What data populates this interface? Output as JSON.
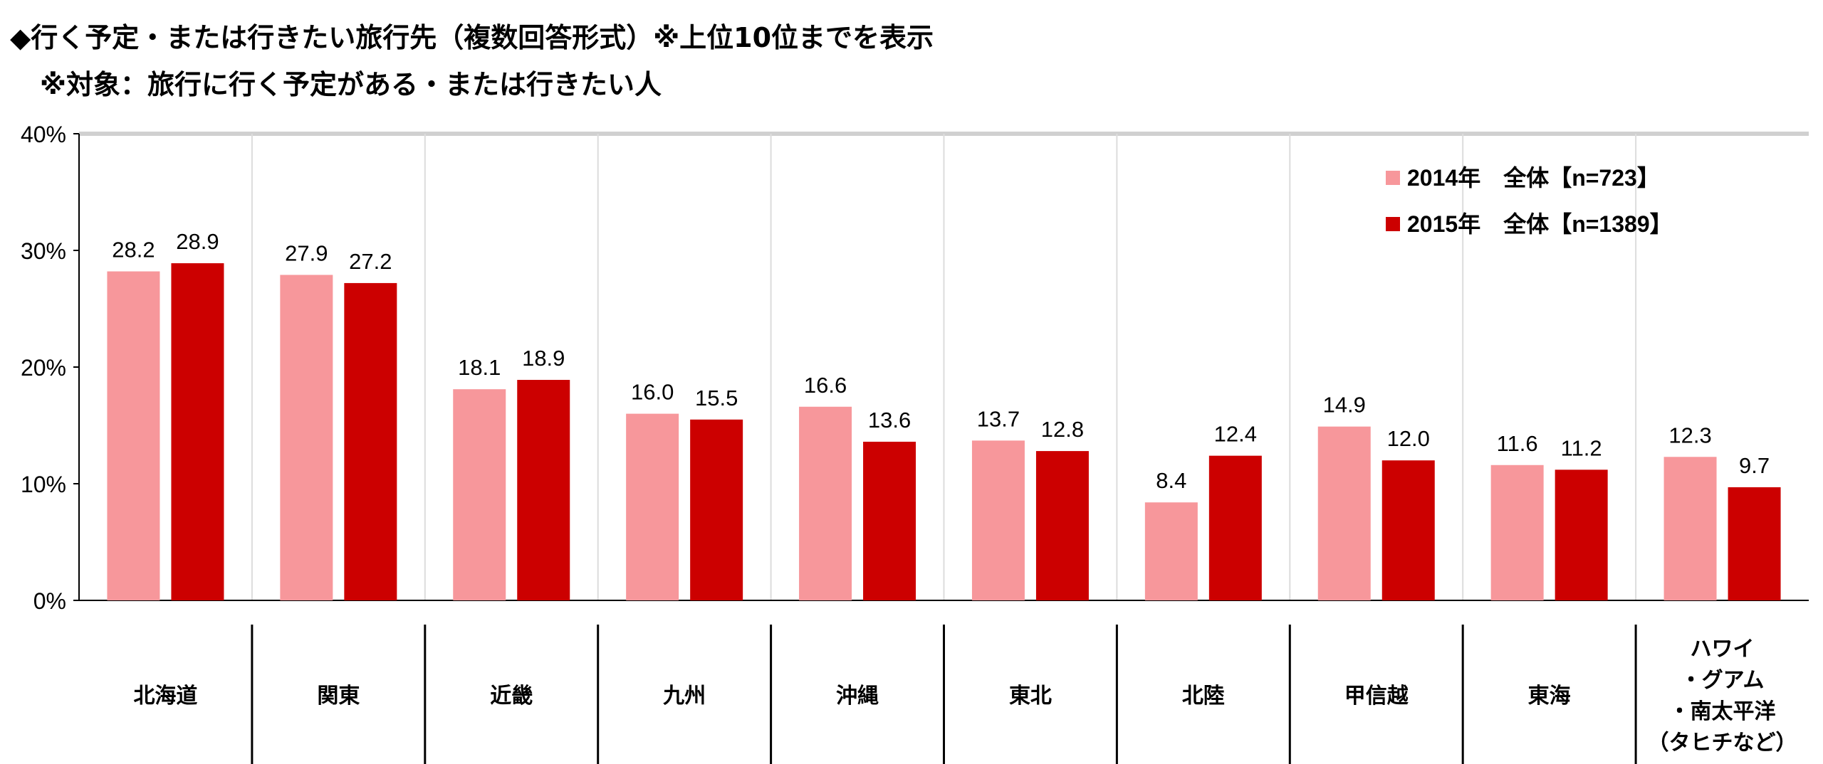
{
  "title": "◆行く予定・または行きたい旅行先（複数回答形式）※上位10位までを表示",
  "subtitle": "※対象：旅行に行く予定がある・または行きたい人",
  "colors": {
    "series_2014": "#F7979B",
    "series_2015": "#CC0000"
  },
  "chart_data": {
    "type": "bar",
    "title": "◆行く予定・または行きたい旅行先（複数回答形式）※上位10位までを表示",
    "xlabel": "",
    "ylabel": "",
    "ylim": [
      0,
      40
    ],
    "yticks": [
      "0%",
      "10%",
      "20%",
      "30%",
      "40%"
    ],
    "legend_position": "top-right",
    "categories": [
      [
        "北海道"
      ],
      [
        "関東"
      ],
      [
        "近畿"
      ],
      [
        "九州"
      ],
      [
        "沖縄"
      ],
      [
        "東北"
      ],
      [
        "北陸"
      ],
      [
        "甲信越"
      ],
      [
        "東海"
      ],
      [
        "ハワイ",
        "・グアム",
        "・南太平洋",
        "（タヒチなど）"
      ]
    ],
    "series": [
      {
        "name": "2014年　全体【n=723】",
        "values": [
          28.2,
          27.9,
          18.1,
          16.0,
          16.6,
          13.7,
          8.4,
          14.9,
          11.6,
          12.3
        ]
      },
      {
        "name": "2015年　全体【n=1389】",
        "values": [
          28.9,
          27.2,
          18.9,
          15.5,
          13.6,
          12.8,
          12.4,
          12.0,
          11.2,
          9.7
        ]
      }
    ]
  }
}
